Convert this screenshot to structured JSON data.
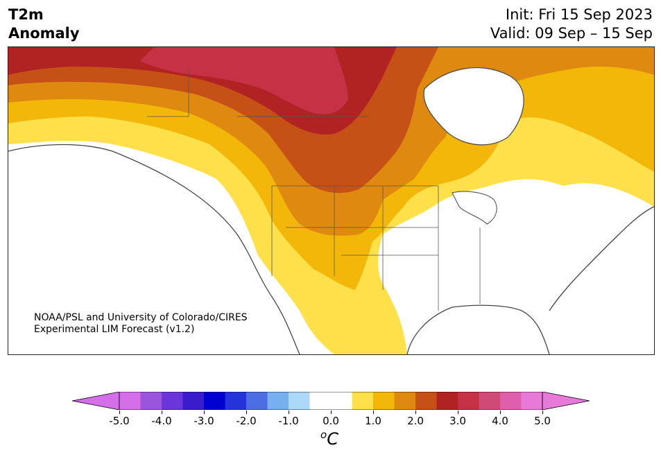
{
  "header": {
    "title_line1": "T2m",
    "title_line2": "Anomaly",
    "init": "Init: Fri 15 Sep 2023",
    "valid": "Valid: 09 Sep – 15 Sep"
  },
  "credit": {
    "line1": "NOAA/PSL and University of Colorado/CIRES",
    "line2": "Experimental LIM Forecast (v1.2)"
  },
  "colorbar": {
    "ticks": [
      "-5.0",
      "-4.0",
      "-3.0",
      "-2.0",
      "-1.0",
      "0.0",
      "1.0",
      "2.0",
      "3.0",
      "4.0",
      "5.0"
    ],
    "unit": "C",
    "unit_prefix": "o",
    "colors": [
      "#d56fe9",
      "#9a55dd",
      "#6a35da",
      "#3a1ccc",
      "#0000d0",
      "#2434da",
      "#4c6ee2",
      "#76b0f0",
      "#acd9f8",
      "#ffffff",
      "#ffffff",
      "#fde04a",
      "#f2b708",
      "#de8a10",
      "#c65116",
      "#b12223",
      "#c53145",
      "#d04a78",
      "#de60ad",
      "#e77ad8"
    ],
    "extend_low": "#d56fe9",
    "extend_high": "#e77ad8"
  },
  "map": {
    "region": "North America",
    "land_outline": "#444444",
    "warm_core": "central Canada",
    "neutral_area": "eastern United States"
  }
}
